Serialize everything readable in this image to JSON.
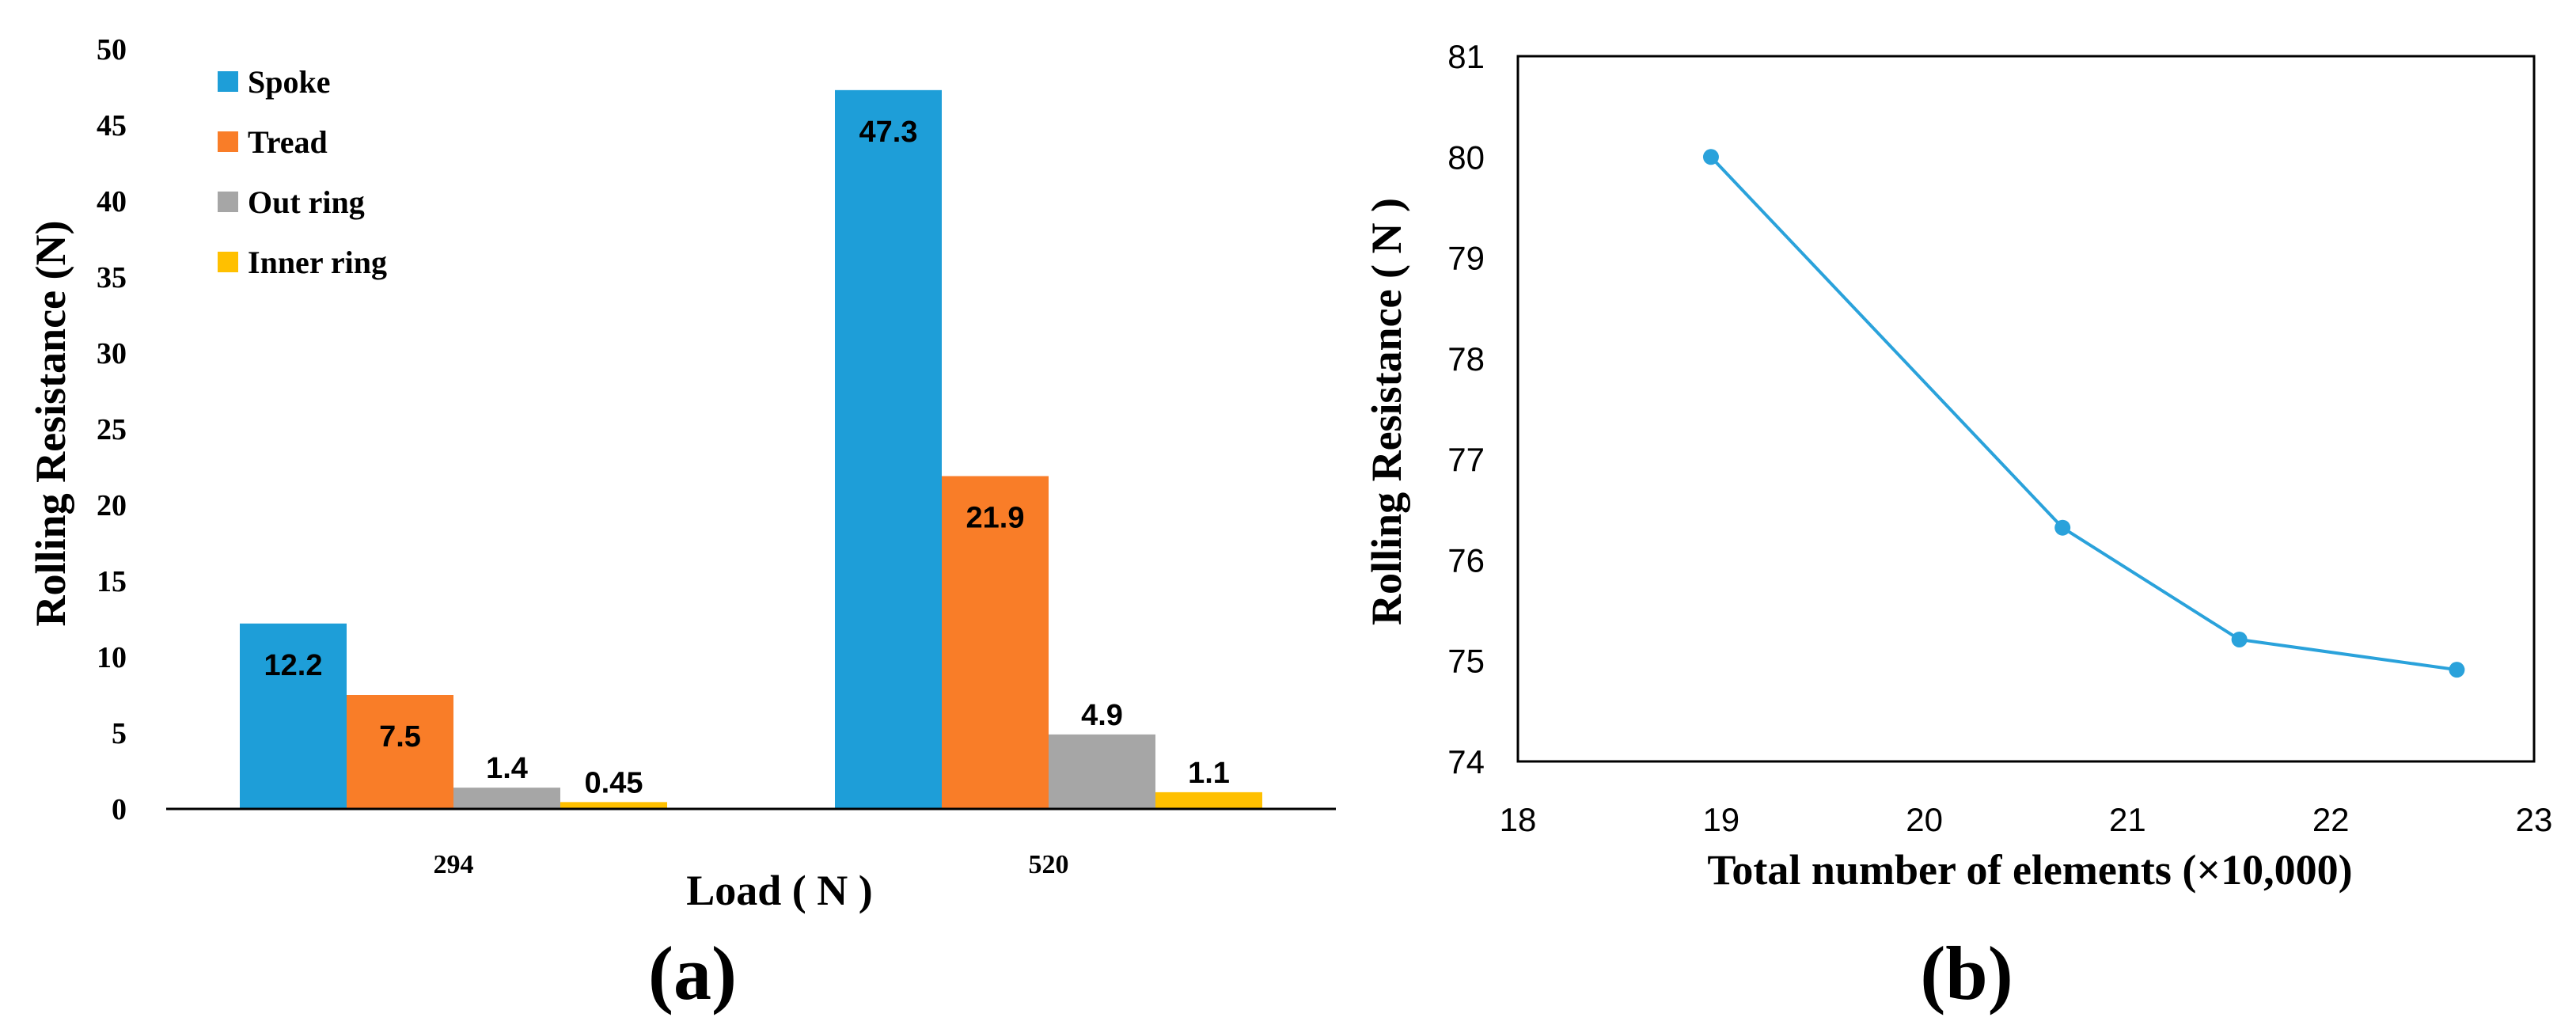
{
  "figure": {
    "panel_a_label": "(a)",
    "panel_b_label": "(b)"
  },
  "chart_data": [
    {
      "type": "bar",
      "panel": "a",
      "categories": [
        "294",
        "520"
      ],
      "series": [
        {
          "name": "Spoke",
          "color": "#1E9ED8",
          "values": [
            12.2,
            47.3
          ],
          "labels": [
            "12.2",
            "47.3"
          ]
        },
        {
          "name": "Tread",
          "color": "#F97D28",
          "values": [
            7.5,
            21.9
          ],
          "labels": [
            "7.5",
            "21.9"
          ]
        },
        {
          "name": "Out ring",
          "color": "#A6A6A6",
          "values": [
            1.4,
            4.9
          ],
          "labels": [
            "1.4",
            "4.9"
          ]
        },
        {
          "name": "Inner ring",
          "color": "#FFC000",
          "values": [
            0.45,
            1.1
          ],
          "labels": [
            "0.45",
            "1.1"
          ]
        }
      ],
      "xlabel": "Load ( N )",
      "ylabel": "Rolling  Resistance  (N)",
      "ylim": [
        0,
        50
      ],
      "yticks": [
        "0",
        "5",
        "10",
        "15",
        "20",
        "25",
        "30",
        "35",
        "40",
        "45",
        "50"
      ],
      "legend_position": "top-left",
      "grid": false
    },
    {
      "type": "line",
      "panel": "b",
      "series": [
        {
          "color": "#2AA2DB",
          "x": [
            18.95,
            20.68,
            21.55,
            22.62
          ],
          "y": [
            80.0,
            76.32,
            75.21,
            74.91
          ]
        }
      ],
      "xlabel": "Total number of elements (×10,000)",
      "ylabel": "Rolling Resistance ( N )",
      "xlim": [
        18,
        23
      ],
      "ylim": [
        74,
        81
      ],
      "xticks": [
        "18",
        "19",
        "20",
        "21",
        "22",
        "23"
      ],
      "yticks": [
        "74",
        "75",
        "76",
        "77",
        "78",
        "79",
        "80",
        "81"
      ],
      "grid": false
    }
  ]
}
